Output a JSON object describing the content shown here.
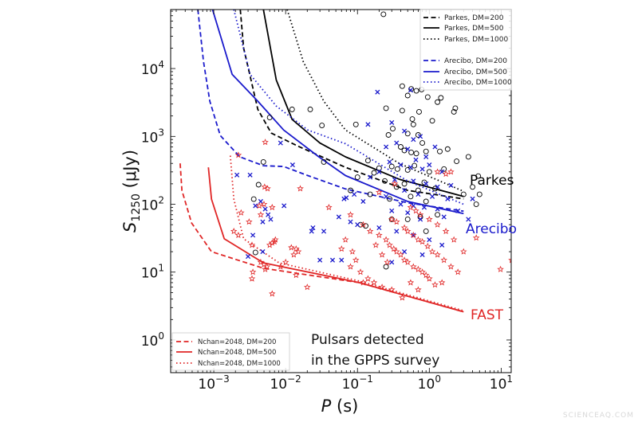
{
  "chart_data": {
    "type": "scatter",
    "xlabel": "P (s)",
    "ylabel": "S1250 (μJy)",
    "xscale": "log",
    "yscale": "log",
    "xlim": [
      0.000251,
      13.8
    ],
    "ylim": [
      0.33,
      74000
    ],
    "x_ticks": [
      {
        "base": "10",
        "exp": "−3",
        "value": 0.001
      },
      {
        "base": "10",
        "exp": "−2",
        "value": 0.01
      },
      {
        "base": "10",
        "exp": "−1",
        "value": 0.1
      },
      {
        "base": "10",
        "exp": "0",
        "value": 1
      },
      {
        "base": "10",
        "exp": "1",
        "value": 10
      }
    ],
    "y_ticks": [
      {
        "base": "10",
        "exp": "0",
        "value": 1
      },
      {
        "base": "10",
        "exp": "1",
        "value": 10
      },
      {
        "base": "10",
        "exp": "2",
        "value": 100
      },
      {
        "base": "10",
        "exp": "3",
        "value": 1000
      },
      {
        "base": "10",
        "exp": "4",
        "value": 10000
      }
    ],
    "grid": false,
    "colors": {
      "parkes": "#000000",
      "arecibo": "#1a1acc",
      "fast": "#e02626"
    },
    "curves": [
      {
        "name": "Parkes, DM=200",
        "group": "parkes",
        "style": "dashed",
        "points": [
          [
            0.00234,
            74000
          ],
          [
            0.0026,
            20000
          ],
          [
            0.0041,
            2500
          ],
          [
            0.0063,
            1120
          ],
          [
            0.0148,
            720
          ],
          [
            0.068,
            350
          ],
          [
            0.5,
            160
          ],
          [
            3,
            120
          ]
        ]
      },
      {
        "name": "Parkes, DM=500",
        "group": "parkes",
        "style": "solid",
        "points": [
          [
            0.0049,
            74000
          ],
          [
            0.0074,
            6800
          ],
          [
            0.0123,
            1780
          ],
          [
            0.03,
            800
          ],
          [
            0.068,
            500
          ],
          [
            0.38,
            234
          ],
          [
            3,
            130
          ]
        ]
      },
      {
        "name": "Parkes, DM=1000",
        "group": "parkes",
        "style": "dotted",
        "points": [
          [
            0.0105,
            74000
          ],
          [
            0.0176,
            12600
          ],
          [
            0.034,
            3300
          ],
          [
            0.068,
            1240
          ],
          [
            0.38,
            400
          ],
          [
            3,
            155
          ]
        ]
      },
      {
        "name": "Arecibo, DM=200",
        "group": "arecibo",
        "style": "dashed",
        "points": [
          [
            0.0006,
            74000
          ],
          [
            0.00072,
            12600
          ],
          [
            0.00088,
            3300
          ],
          [
            0.00123,
            1030
          ],
          [
            0.0023,
            500
          ],
          [
            0.0049,
            370
          ],
          [
            0.0094,
            360
          ],
          [
            0.0204,
            265
          ],
          [
            0.068,
            168
          ],
          [
            0.5,
            105
          ],
          [
            3,
            79
          ]
        ]
      },
      {
        "name": "Arecibo, DM=500",
        "group": "arecibo",
        "style": "solid",
        "points": [
          [
            0.00096,
            74000
          ],
          [
            0.0018,
            8200
          ],
          [
            0.0041,
            3300
          ],
          [
            0.0094,
            1240
          ],
          [
            0.029,
            500
          ],
          [
            0.068,
            265
          ],
          [
            0.5,
            110
          ],
          [
            3,
            73
          ]
        ]
      },
      {
        "name": "Arecibo, DM=1000",
        "group": "arecibo",
        "style": "dotted",
        "points": [
          [
            0.0019,
            74000
          ],
          [
            0.0032,
            8200
          ],
          [
            0.0074,
            2800
          ],
          [
            0.0204,
            1240
          ],
          [
            0.068,
            780
          ],
          [
            0.5,
            220
          ],
          [
            3,
            100
          ]
        ]
      },
      {
        "name": "Nchan=2048, DM=200",
        "group": "fast",
        "style": "dashed",
        "points": [
          [
            0.00034,
            400
          ],
          [
            0.00036,
            160
          ],
          [
            0.00049,
            53
          ],
          [
            0.00093,
            20
          ],
          [
            0.0049,
            11.4
          ],
          [
            0.105,
            7
          ],
          [
            3,
            2.6
          ]
        ]
      },
      {
        "name": "Nchan=2048, DM=500",
        "group": "fast",
        "style": "solid",
        "points": [
          [
            0.00084,
            350
          ],
          [
            0.00093,
            119
          ],
          [
            0.0014,
            31
          ],
          [
            0.0049,
            13.7
          ],
          [
            0.105,
            7
          ],
          [
            3,
            2.6
          ]
        ]
      },
      {
        "name": "Nchan=2048, DM=1000",
        "group": "fast",
        "style": "dotted",
        "points": [
          [
            0.0017,
            520
          ],
          [
            0.0019,
            119
          ],
          [
            0.0026,
            31
          ],
          [
            0.0081,
            13.7
          ],
          [
            0.105,
            7.4
          ],
          [
            3,
            2.7
          ]
        ]
      }
    ],
    "scatter": {
      "circles": [
        [
          0.23,
          63000
        ],
        [
          0.42,
          5500
        ],
        [
          0.56,
          5000
        ],
        [
          0.66,
          4700
        ],
        [
          0.78,
          4900
        ],
        [
          0.5,
          4000
        ],
        [
          0.95,
          3800
        ],
        [
          1.3,
          3200
        ],
        [
          1.45,
          3700
        ],
        [
          2.3,
          2600
        ],
        [
          2.2,
          2300
        ],
        [
          0.25,
          2600
        ],
        [
          0.42,
          2400
        ],
        [
          0.58,
          1800
        ],
        [
          0.72,
          2300
        ],
        [
          0.6,
          1500
        ],
        [
          0.31,
          1300
        ],
        [
          0.27,
          1050
        ],
        [
          0.5,
          1100
        ],
        [
          0.7,
          1050
        ],
        [
          0.8,
          800
        ],
        [
          1.1,
          1700
        ],
        [
          0.4,
          700
        ],
        [
          0.45,
          620
        ],
        [
          0.56,
          580
        ],
        [
          0.66,
          560
        ],
        [
          0.9,
          600
        ],
        [
          1.4,
          600
        ],
        [
          1.8,
          650
        ],
        [
          3.5,
          500
        ],
        [
          0.14,
          440
        ],
        [
          0.2,
          340
        ],
        [
          0.3,
          360
        ],
        [
          0.36,
          330
        ],
        [
          0.5,
          320
        ],
        [
          0.62,
          370
        ],
        [
          1.0,
          300
        ],
        [
          1.6,
          330
        ],
        [
          2.4,
          430
        ],
        [
          4.8,
          260
        ],
        [
          0.1,
          250
        ],
        [
          0.17,
          290
        ],
        [
          0.24,
          220
        ],
        [
          0.35,
          180
        ],
        [
          0.45,
          200
        ],
        [
          0.7,
          160
        ],
        [
          0.85,
          210
        ],
        [
          1.2,
          170
        ],
        [
          3.0,
          140
        ],
        [
          4.0,
          180
        ],
        [
          5.0,
          140
        ],
        [
          0.08,
          160
        ],
        [
          0.15,
          140
        ],
        [
          0.28,
          120
        ],
        [
          0.55,
          130
        ],
        [
          0.9,
          110
        ],
        [
          1.3,
          70
        ],
        [
          4.5,
          100
        ],
        [
          0.3,
          60
        ],
        [
          0.5,
          60
        ],
        [
          0.75,
          65
        ],
        [
          0.11,
          50
        ],
        [
          0.13,
          48
        ],
        [
          0.9,
          40
        ],
        [
          0.25,
          12
        ],
        [
          0.0123,
          2500
        ],
        [
          0.006,
          1900
        ],
        [
          0.032,
          1450
        ],
        [
          0.0049,
          420
        ],
        [
          0.034,
          420
        ],
        [
          0.0042,
          194
        ],
        [
          0.0036,
          119
        ],
        [
          0.0038,
          19.5
        ],
        [
          0.022,
          2500
        ],
        [
          0.095,
          1500
        ]
      ],
      "crosses": [
        [
          0.19,
          4500
        ],
        [
          0.55,
          4800
        ],
        [
          0.14,
          1500
        ],
        [
          0.3,
          1600
        ],
        [
          0.45,
          1200
        ],
        [
          0.6,
          900
        ],
        [
          0.75,
          1000
        ],
        [
          0.35,
          800
        ],
        [
          0.25,
          700
        ],
        [
          0.5,
          650
        ],
        [
          0.9,
          500
        ],
        [
          1.2,
          700
        ],
        [
          0.65,
          450
        ],
        [
          0.28,
          420
        ],
        [
          0.4,
          380
        ],
        [
          0.55,
          350
        ],
        [
          0.8,
          330
        ],
        [
          1.0,
          380
        ],
        [
          1.5,
          300
        ],
        [
          0.2,
          300
        ],
        [
          0.15,
          250
        ],
        [
          0.33,
          230
        ],
        [
          0.6,
          220
        ],
        [
          0.9,
          200
        ],
        [
          1.3,
          180
        ],
        [
          2.0,
          190
        ],
        [
          0.45,
          160
        ],
        [
          0.7,
          140
        ],
        [
          1.1,
          130
        ],
        [
          1.8,
          120
        ],
        [
          0.25,
          130
        ],
        [
          0.12,
          110
        ],
        [
          0.4,
          100
        ],
        [
          0.6,
          95
        ],
        [
          0.85,
          90
        ],
        [
          1.3,
          85
        ],
        [
          2.5,
          80
        ],
        [
          0.3,
          80
        ],
        [
          0.5,
          75
        ],
        [
          0.75,
          60
        ],
        [
          1.6,
          65
        ],
        [
          0.1,
          50
        ],
        [
          0.2,
          45
        ],
        [
          0.35,
          40
        ],
        [
          0.6,
          35
        ],
        [
          1.0,
          30
        ],
        [
          1.5,
          25
        ],
        [
          0.45,
          20
        ],
        [
          0.8,
          18
        ],
        [
          0.3,
          14
        ],
        [
          4.0,
          120
        ],
        [
          3.5,
          60
        ],
        [
          0.065,
          120
        ],
        [
          0.09,
          140
        ],
        [
          0.0085,
          800
        ],
        [
          0.0125,
          380
        ],
        [
          0.0021,
          270
        ],
        [
          0.0032,
          270
        ],
        [
          0.0045,
          110
        ],
        [
          0.0038,
          95
        ],
        [
          0.0052,
          85
        ],
        [
          0.0057,
          70
        ],
        [
          0.0062,
          60
        ],
        [
          0.0048,
          55
        ],
        [
          0.0095,
          95
        ],
        [
          0.0035,
          35
        ],
        [
          0.0048,
          20
        ],
        [
          0.003,
          17
        ],
        [
          0.024,
          45
        ],
        [
          0.023,
          40
        ],
        [
          0.034,
          40
        ],
        [
          0.03,
          15
        ],
        [
          0.045,
          15
        ],
        [
          0.06,
          15
        ],
        [
          0.07,
          125
        ],
        [
          0.055,
          65
        ],
        [
          0.08,
          55
        ]
      ],
      "stars": [
        [
          0.0052,
          820
        ],
        [
          0.0022,
          530
        ],
        [
          0.0051,
          180
        ],
        [
          0.0056,
          170
        ],
        [
          0.016,
          170
        ],
        [
          0.0043,
          95
        ],
        [
          0.005,
          100
        ],
        [
          0.0065,
          90
        ],
        [
          0.0024,
          75
        ],
        [
          0.0031,
          55
        ],
        [
          0.0045,
          70
        ],
        [
          0.04,
          90
        ],
        [
          0.0019,
          40
        ],
        [
          0.0022,
          35
        ],
        [
          0.0034,
          25
        ],
        [
          0.006,
          25
        ],
        [
          0.0065,
          27
        ],
        [
          0.007,
          28
        ],
        [
          0.0072,
          30
        ],
        [
          0.012,
          23
        ],
        [
          0.014,
          22
        ],
        [
          0.015,
          20
        ],
        [
          0.013,
          18
        ],
        [
          0.01,
          14
        ],
        [
          0.0045,
          14
        ],
        [
          0.005,
          13
        ],
        [
          0.0055,
          12
        ],
        [
          0.0052,
          11
        ],
        [
          0.0035,
          10
        ],
        [
          0.0034,
          8
        ],
        [
          0.0085,
          12
        ],
        [
          0.014,
          9
        ],
        [
          0.02,
          6
        ],
        [
          0.0065,
          4.8
        ],
        [
          0.08,
          70
        ],
        [
          0.068,
          30
        ],
        [
          0.06,
          22
        ],
        [
          0.085,
          20
        ],
        [
          0.095,
          15
        ],
        [
          0.11,
          10
        ],
        [
          0.14,
          8
        ],
        [
          0.17,
          7
        ],
        [
          0.22,
          6
        ],
        [
          0.3,
          5.5
        ],
        [
          0.42,
          4.2
        ],
        [
          0.55,
          7
        ],
        [
          0.7,
          5.5
        ],
        [
          1.2,
          6.5
        ],
        [
          0.12,
          50
        ],
        [
          0.15,
          40
        ],
        [
          0.2,
          35
        ],
        [
          0.25,
          30
        ],
        [
          0.28,
          25
        ],
        [
          0.32,
          22
        ],
        [
          0.35,
          20
        ],
        [
          0.4,
          18
        ],
        [
          0.45,
          15
        ],
        [
          0.5,
          14
        ],
        [
          0.6,
          12
        ],
        [
          0.7,
          11
        ],
        [
          0.8,
          10
        ],
        [
          0.9,
          9
        ],
        [
          1.0,
          8
        ],
        [
          1.5,
          7
        ],
        [
          0.3,
          60
        ],
        [
          0.35,
          55
        ],
        [
          0.45,
          45
        ],
        [
          0.5,
          40
        ],
        [
          0.6,
          35
        ],
        [
          0.7,
          30
        ],
        [
          0.8,
          28
        ],
        [
          0.95,
          24
        ],
        [
          1.1,
          20
        ],
        [
          1.3,
          18
        ],
        [
          1.6,
          15
        ],
        [
          2.0,
          12
        ],
        [
          2.5,
          10
        ],
        [
          0.55,
          90
        ],
        [
          0.65,
          80
        ],
        [
          0.75,
          70
        ],
        [
          1.0,
          60
        ],
        [
          1.3,
          50
        ],
        [
          1.7,
          40
        ],
        [
          2.2,
          30
        ],
        [
          0.18,
          25
        ],
        [
          0.22,
          18
        ],
        [
          0.26,
          14
        ],
        [
          1.3,
          300
        ],
        [
          1.7,
          280
        ],
        [
          2.0,
          300
        ],
        [
          0.33,
          200
        ],
        [
          0.2,
          150
        ],
        [
          4.5,
          32
        ],
        [
          9.8,
          11
        ],
        [
          14,
          15
        ],
        [
          0.12,
          7
        ],
        [
          0.08,
          12
        ],
        [
          3.0,
          20
        ]
      ]
    }
  },
  "legends": {
    "top_right": [
      "Parkes, DM=200",
      "Parkes, DM=500",
      "Parkes, DM=1000",
      "Arecibo, DM=200",
      "Arecibo, DM=500",
      "Arecibo, DM=1000"
    ],
    "bottom_left": [
      "Nchan=2048, DM=200",
      "Nchan=2048, DM=500",
      "Nchan=2048, DM=1000"
    ]
  },
  "annotations": {
    "note_line1": "Pulsars detected",
    "note_line2": "in the GPPS survey",
    "parkes": "Parkes",
    "arecibo": "Arecibo",
    "fast": "FAST"
  },
  "axis_labels": {
    "x_italic": "P",
    "x_rest": " (s)",
    "y_main": "S",
    "y_sub": "1250",
    "y_rest": " (μJy)"
  },
  "watermark": "SCIENCEAQ.COM"
}
